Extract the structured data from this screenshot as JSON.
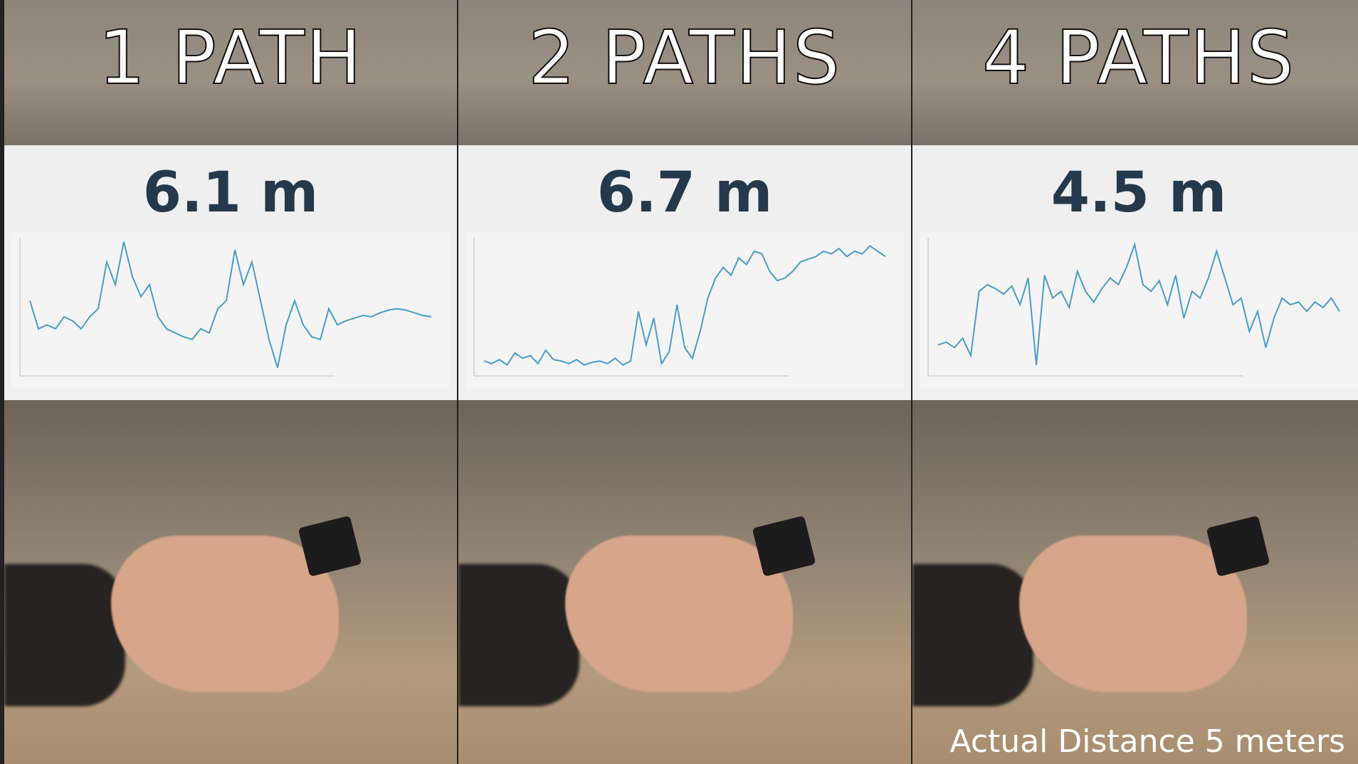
{
  "panels": [
    {
      "heading": "1 PATH",
      "reading": "6.1 m"
    },
    {
      "heading": "2 PATHS",
      "reading": "6.7 m"
    },
    {
      "heading": "4 PATHS",
      "reading": "4.5 m"
    }
  ],
  "chart_data": [
    {
      "type": "line",
      "color": "#4a9cc7",
      "ylim": [
        0,
        100
      ],
      "values": [
        53,
        32,
        35,
        32,
        41,
        38,
        32,
        41,
        47,
        82,
        65,
        97,
        71,
        56,
        65,
        41,
        32,
        29,
        26,
        24,
        32,
        29,
        47,
        53,
        91,
        65,
        82,
        53,
        24,
        3,
        35,
        53,
        35,
        26,
        24,
        47,
        35,
        38,
        40,
        42,
        41,
        44,
        46,
        47,
        46,
        44,
        42,
        41
      ]
    },
    {
      "type": "line",
      "color": "#4a9cc7",
      "ylim": [
        0,
        100
      ],
      "values": [
        8,
        6,
        9,
        5,
        14,
        10,
        12,
        6,
        16,
        9,
        8,
        6,
        9,
        5,
        7,
        8,
        6,
        10,
        5,
        8,
        45,
        20,
        40,
        6,
        15,
        50,
        18,
        10,
        30,
        55,
        70,
        78,
        72,
        85,
        80,
        90,
        88,
        75,
        68,
        70,
        75,
        82,
        84,
        86,
        90,
        88,
        92,
        86,
        90,
        88,
        94,
        90,
        86
      ]
    },
    {
      "type": "line",
      "color": "#4a9cc7",
      "ylim": [
        0,
        100
      ],
      "values": [
        20,
        22,
        18,
        25,
        12,
        60,
        65,
        62,
        58,
        64,
        50,
        70,
        5,
        72,
        55,
        60,
        48,
        75,
        60,
        52,
        62,
        70,
        65,
        78,
        95,
        65,
        60,
        68,
        50,
        72,
        40,
        60,
        55,
        70,
        90,
        70,
        50,
        55,
        30,
        45,
        18,
        40,
        55,
        50,
        52,
        45,
        52,
        48,
        55,
        45
      ]
    }
  ],
  "caption": "Actual Distance 5 meters"
}
